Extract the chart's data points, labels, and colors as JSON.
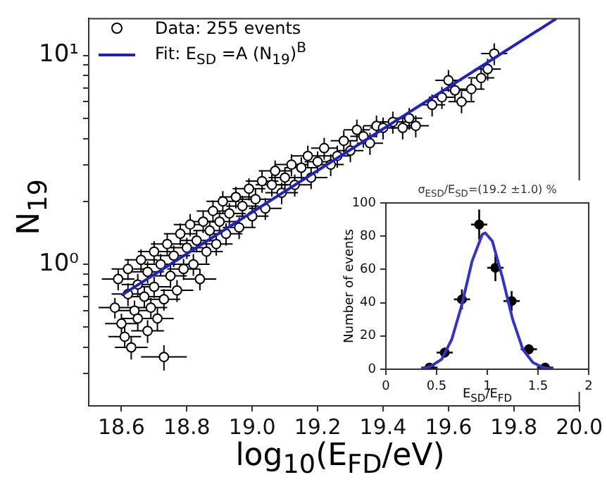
{
  "chart_data": [
    {
      "type": "scatter",
      "xlabel": "log$_{10}$(E$_{FD}$/eV)",
      "ylabel": "N$_{19}$",
      "log": "y",
      "xlim": [
        18.5,
        20.0
      ],
      "ylim": [
        0.21,
        15
      ],
      "xticks": [
        18.6,
        18.8,
        {
          "value": 19,
          "label": "19.0"
        },
        19.2,
        19.4,
        19.6,
        19.8,
        {
          "value": 20,
          "label": "20.0"
        }
      ],
      "yticks": [
        {
          "value": 0.3,
          "label": null
        },
        {
          "value": 0.4,
          "label": null
        },
        {
          "value": 0.5,
          "label": null
        },
        {
          "value": 0.6,
          "label": null
        },
        {
          "value": 0.7,
          "label": null
        },
        {
          "value": 0.8,
          "label": null
        },
        {
          "value": 0.9,
          "label": null
        },
        {
          "value": 1,
          "label": "10⁰"
        },
        {
          "value": 2,
          "label": null
        },
        {
          "value": 3,
          "label": null
        },
        {
          "value": 4,
          "label": null
        },
        {
          "value": 5,
          "label": null
        },
        {
          "value": 6,
          "label": null
        },
        {
          "value": 7,
          "label": null
        },
        {
          "value": 8,
          "label": null
        },
        {
          "value": 9,
          "label": null
        },
        {
          "value": 10,
          "label": "10¹"
        }
      ],
      "grid": false,
      "legend": "top left",
      "series": [
        {
          "name": "Data: 255 events",
          "type": "scatter",
          "marker": "circle",
          "color": "#000000",
          "x": [
            18.58,
            18.59,
            18.6,
            18.61,
            18.62,
            18.62,
            18.63,
            18.64,
            18.65,
            18.65,
            18.66,
            18.67,
            18.68,
            18.68,
            18.69,
            18.7,
            18.7,
            18.71,
            18.72,
            18.73,
            18.73,
            18.74,
            18.75,
            18.76,
            18.77,
            18.78,
            18.79,
            18.8,
            18.81,
            18.82,
            18.83,
            18.84,
            18.85,
            18.86,
            18.87,
            18.88,
            18.89,
            18.9,
            18.91,
            18.92,
            18.93,
            18.95,
            18.96,
            18.97,
            18.99,
            19.0,
            19.01,
            19.03,
            19.04,
            19.06,
            19.07,
            19.09,
            19.1,
            19.12,
            19.13,
            19.15,
            19.17,
            19.18,
            19.2,
            19.22,
            19.24,
            19.26,
            19.28,
            19.3,
            19.32,
            19.34,
            19.36,
            19.38,
            19.4,
            19.43,
            19.46,
            19.48,
            19.5,
            19.55,
            19.58,
            19.6,
            19.62,
            19.64,
            19.67,
            19.7,
            19.72,
            19.74
          ],
          "values": [
            0.62,
            0.85,
            0.52,
            0.45,
            0.72,
            0.95,
            0.4,
            0.6,
            0.8,
            0.55,
            1.05,
            0.7,
            0.48,
            0.92,
            0.62,
            1.15,
            0.78,
            0.55,
            1.0,
            0.36,
            0.68,
            1.25,
            0.88,
            1.1,
            0.75,
            1.4,
            0.95,
            1.2,
            1.55,
            1.0,
            1.3,
            0.85,
            1.6,
            1.15,
            1.45,
            1.8,
            1.25,
            1.6,
            2.0,
            1.4,
            1.75,
            2.1,
            1.5,
            1.9,
            2.3,
            1.7,
            2.05,
            2.5,
            1.85,
            2.4,
            2.8,
            2.2,
            2.6,
            3.0,
            2.4,
            2.9,
            3.3,
            2.6,
            3.1,
            3.6,
            3.0,
            3.3,
            3.9,
            3.5,
            4.4,
            4.1,
            3.8,
            4.6,
            4.5,
            4.8,
            4.5,
            5.0,
            4.6,
            5.8,
            6.3,
            7.6,
            6.8,
            6.0,
            6.9,
            7.8,
            8.6,
            10.2
          ],
          "errors": [
            0.07,
            0.1,
            0.06,
            0.05,
            0.09,
            0.11,
            0.05,
            0.07,
            0.1,
            0.07,
            0.13,
            0.08,
            0.06,
            0.11,
            0.07,
            0.14,
            0.09,
            0.07,
            0.12,
            0.05,
            0.08,
            0.15,
            0.11,
            0.13,
            0.09,
            0.17,
            0.11,
            0.14,
            0.19,
            0.12,
            0.16,
            0.1,
            0.19,
            0.14,
            0.17,
            0.22,
            0.15,
            0.19,
            0.24,
            0.17,
            0.21,
            0.25,
            0.18,
            0.23,
            0.28,
            0.2,
            0.25,
            0.3,
            0.22,
            0.29,
            0.34,
            0.26,
            0.31,
            0.36,
            0.29,
            0.35,
            0.4,
            0.31,
            0.37,
            0.43,
            0.36,
            0.4,
            0.47,
            0.42,
            0.53,
            0.49,
            0.46,
            0.55,
            0.54,
            0.58,
            0.54,
            0.6,
            0.55,
            0.7,
            0.76,
            0.91,
            0.82,
            0.72,
            0.83,
            0.94,
            1.03,
            1.22
          ],
          "xerrors": [
            0.05,
            0.05,
            0.05,
            0.05,
            0.05,
            0.05,
            0.05,
            0.05,
            0.05,
            0.05,
            0.05,
            0.05,
            0.05,
            0.05,
            0.05,
            0.05,
            0.05,
            0.05,
            0.05,
            0.07,
            0.05,
            0.05,
            0.05,
            0.05,
            0.05,
            0.05,
            0.05,
            0.05,
            0.05,
            0.05,
            0.05,
            0.05,
            0.05,
            0.05,
            0.05,
            0.05,
            0.05,
            0.05,
            0.05,
            0.05,
            0.05,
            0.05,
            0.05,
            0.05,
            0.05,
            0.05,
            0.05,
            0.05,
            0.05,
            0.05,
            0.05,
            0.05,
            0.05,
            0.05,
            0.05,
            0.05,
            0.05,
            0.05,
            0.04,
            0.04,
            0.04,
            0.04,
            0.04,
            0.04,
            0.04,
            0.04,
            0.04,
            0.04,
            0.04,
            0.04,
            0.04,
            0.04,
            0.04,
            0.04,
            0.04,
            0.04,
            0.04,
            0.04,
            0.04,
            0.04,
            0.04,
            0.04
          ]
        },
        {
          "name": "Fit: E$_{SD}$ =A (N$_{19}$)$^{B}$",
          "type": "line",
          "marker": "none",
          "color": "#1f1fd0",
          "x": [
            18.6,
            19.93
          ],
          "values": [
            0.71,
            15
          ]
        }
      ]
    },
    {
      "type": "scatter",
      "xlabel": "E$_{SD}$/E$_{FD}$",
      "ylabel": "Number of events",
      "annotations": [
        "σ$_{ESD}$/E$_{SD}$=(19.2  ±1.0) %"
      ],
      "xlim": [
        0,
        2
      ],
      "ylim": [
        0,
        100
      ],
      "xticks": [
        0,
        0.5,
        1,
        1.5,
        2
      ],
      "yticks": [
        0,
        20,
        40,
        60,
        80,
        100
      ],
      "grid": false,
      "series": [
        {
          "type": "scatter",
          "marker": "circle",
          "color": "#000000",
          "x": [
            0.43,
            0.58,
            0.75,
            0.92,
            1.08,
            1.24,
            1.41,
            1.57
          ],
          "values": [
            1,
            10,
            42,
            87,
            61,
            41,
            12,
            1
          ],
          "errors": [
            null,
            3,
            6,
            9,
            8,
            6,
            3,
            null
          ],
          "xerrors": [
            0.08,
            0.08,
            0.08,
            0.08,
            0.08,
            0.08,
            0.08,
            0.08
          ]
        },
        {
          "type": "line",
          "marker": "none",
          "color": "#3333cc",
          "x": [
            0.35,
            0.45,
            0.55,
            0.65,
            0.75,
            0.85,
            0.95,
            0.98,
            1.05,
            1.15,
            1.25,
            1.35,
            1.45,
            1.55,
            1.65
          ],
          "values": [
            0,
            2,
            6,
            18,
            39,
            65,
            81,
            82,
            77,
            55,
            30,
            12,
            4,
            1,
            0
          ]
        }
      ]
    }
  ]
}
